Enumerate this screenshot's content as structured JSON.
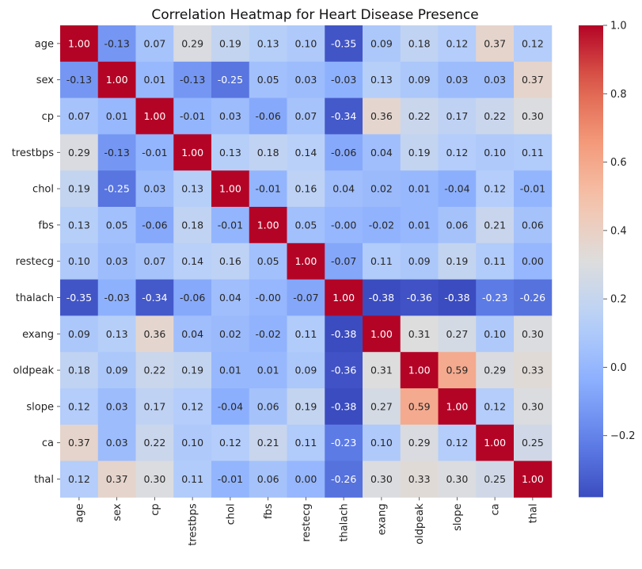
{
  "chart_data": {
    "type": "heatmap",
    "title": "Correlation Heatmap for Heart Disease Presence",
    "xlabel": "",
    "ylabel": "",
    "labels": [
      "age",
      "sex",
      "cp",
      "trestbps",
      "chol",
      "fbs",
      "restecg",
      "thalach",
      "exang",
      "oldpeak",
      "slope",
      "ca",
      "thal"
    ],
    "matrix": [
      [
        "1.00",
        "-0.13",
        "0.07",
        "0.29",
        "0.19",
        "0.13",
        "0.10",
        "-0.35",
        "0.09",
        "0.18",
        "0.12",
        "0.37",
        "0.12"
      ],
      [
        "-0.13",
        "1.00",
        "0.01",
        "-0.13",
        "-0.25",
        "0.05",
        "0.03",
        "-0.03",
        "0.13",
        "0.09",
        "0.03",
        "0.03",
        "0.37"
      ],
      [
        "0.07",
        "0.01",
        "1.00",
        "-0.01",
        "0.03",
        "-0.06",
        "0.07",
        "-0.34",
        "0.36",
        "0.22",
        "0.17",
        "0.22",
        "0.30"
      ],
      [
        "0.29",
        "-0.13",
        "-0.01",
        "1.00",
        "0.13",
        "0.18",
        "0.14",
        "-0.06",
        "0.04",
        "0.19",
        "0.12",
        "0.10",
        "0.11"
      ],
      [
        "0.19",
        "-0.25",
        "0.03",
        "0.13",
        "1.00",
        "-0.01",
        "0.16",
        "0.04",
        "0.02",
        "0.01",
        "-0.04",
        "0.12",
        "-0.01"
      ],
      [
        "0.13",
        "0.05",
        "-0.06",
        "0.18",
        "-0.01",
        "1.00",
        "0.05",
        "-0.00",
        "-0.02",
        "0.01",
        "0.06",
        "0.21",
        "0.06"
      ],
      [
        "0.10",
        "0.03",
        "0.07",
        "0.14",
        "0.16",
        "0.05",
        "1.00",
        "-0.07",
        "0.11",
        "0.09",
        "0.19",
        "0.11",
        "0.00"
      ],
      [
        "-0.35",
        "-0.03",
        "-0.34",
        "-0.06",
        "0.04",
        "-0.00",
        "-0.07",
        "1.00",
        "-0.38",
        "-0.36",
        "-0.38",
        "-0.23",
        "-0.26"
      ],
      [
        "0.09",
        "0.13",
        "0.36",
        "0.04",
        "0.02",
        "-0.02",
        "0.11",
        "-0.38",
        "1.00",
        "0.31",
        "0.27",
        "0.10",
        "0.30"
      ],
      [
        "0.18",
        "0.09",
        "0.22",
        "0.19",
        "0.01",
        "0.01",
        "0.09",
        "-0.36",
        "0.31",
        "1.00",
        "0.59",
        "0.29",
        "0.33"
      ],
      [
        "0.12",
        "0.03",
        "0.17",
        "0.12",
        "-0.04",
        "0.06",
        "0.19",
        "-0.38",
        "0.27",
        "0.59",
        "1.00",
        "0.12",
        "0.30"
      ],
      [
        "0.37",
        "0.03",
        "0.22",
        "0.10",
        "0.12",
        "0.21",
        "0.11",
        "-0.23",
        "0.10",
        "0.29",
        "0.12",
        "1.00",
        "0.25"
      ],
      [
        "0.12",
        "0.37",
        "0.30",
        "0.11",
        "-0.01",
        "0.06",
        "0.00",
        "-0.26",
        "0.30",
        "0.33",
        "0.30",
        "0.25",
        "1.00"
      ]
    ],
    "colormap": "coolwarm",
    "vmin": -0.38,
    "vmax": 1.0,
    "colorbar_ticks": [
      "1.0",
      "0.8",
      "0.6",
      "0.4",
      "0.2",
      "0.0",
      "−0.2"
    ],
    "colorbar_tick_values": [
      1.0,
      0.8,
      0.6,
      0.4,
      0.2,
      0.0,
      -0.2
    ],
    "grid": false,
    "legend": "colorbar-right"
  }
}
